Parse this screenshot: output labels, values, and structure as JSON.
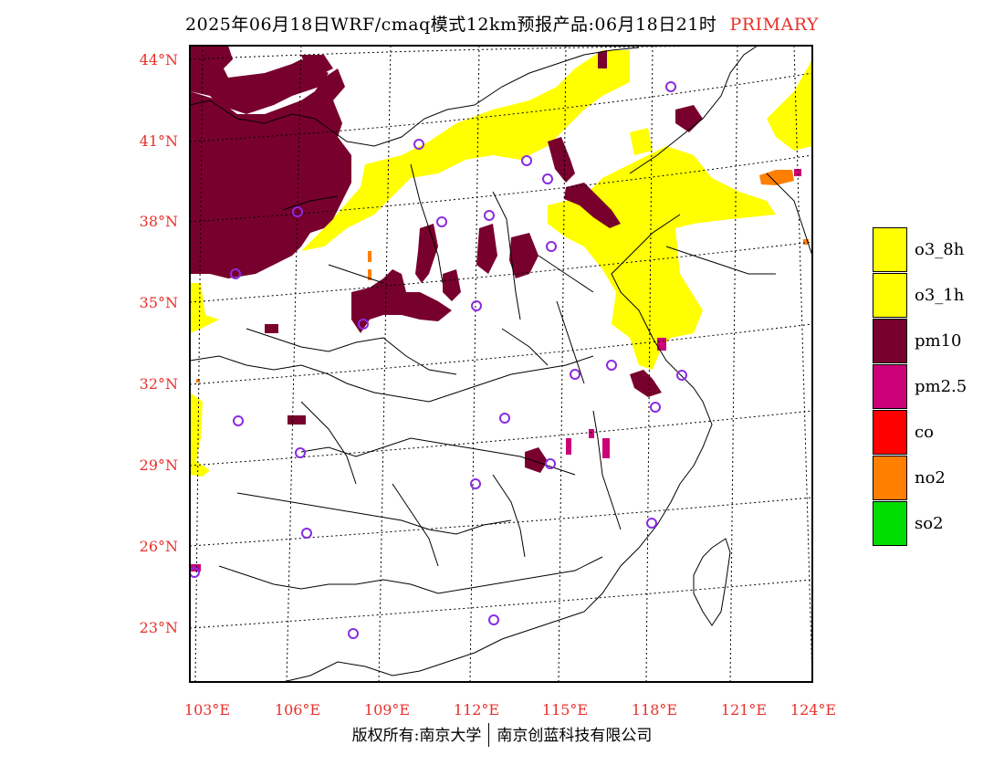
{
  "title": {
    "main": "2025年06月18日WRF/cmaq模式12km预报产品:06月18日21时",
    "tag": "PRIMARY"
  },
  "lat_labels": [
    "44°N",
    "41°N",
    "38°N",
    "35°N",
    "32°N",
    "29°N",
    "26°N",
    "23°N"
  ],
  "lon_labels": [
    "103°E",
    "106°E",
    "109°E",
    "112°E",
    "115°E",
    "118°E",
    "121°E",
    "124°E"
  ],
  "legend": {
    "items": [
      {
        "label": "o3_8h",
        "color": "#ffff00"
      },
      {
        "label": "o3_1h",
        "color": "#ffff00"
      },
      {
        "label": "pm10",
        "color": "#78002d"
      },
      {
        "label": "pm2.5",
        "color": "#cc0077"
      },
      {
        "label": "co",
        "color": "#ff0000"
      },
      {
        "label": "no2",
        "color": "#ff7f00"
      },
      {
        "label": "so2",
        "color": "#00dd00"
      }
    ]
  },
  "copyright": {
    "left": "版权所有:南京大学",
    "right": "南京创蓝科技有限公司"
  },
  "colors": {
    "o3": "#ffff00",
    "pm10": "#78002d",
    "pm25": "#cc0077",
    "no2": "#ff7f00",
    "station": "#8a2be2",
    "label_red": "#e8302b"
  },
  "station_icon": "circle-icon"
}
